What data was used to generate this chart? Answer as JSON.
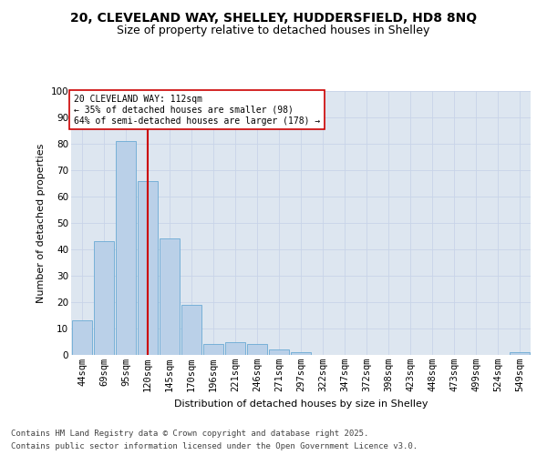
{
  "title1": "20, CLEVELAND WAY, SHELLEY, HUDDERSFIELD, HD8 8NQ",
  "title2": "Size of property relative to detached houses in Shelley",
  "xlabel": "Distribution of detached houses by size in Shelley",
  "ylabel": "Number of detached properties",
  "categories": [
    "44sqm",
    "69sqm",
    "95sqm",
    "120sqm",
    "145sqm",
    "170sqm",
    "196sqm",
    "221sqm",
    "246sqm",
    "271sqm",
    "297sqm",
    "322sqm",
    "347sqm",
    "372sqm",
    "398sqm",
    "423sqm",
    "448sqm",
    "473sqm",
    "499sqm",
    "524sqm",
    "549sqm"
  ],
  "values": [
    13,
    43,
    81,
    66,
    44,
    19,
    4,
    5,
    4,
    2,
    1,
    0,
    0,
    0,
    0,
    0,
    0,
    0,
    0,
    0,
    1
  ],
  "bar_color": "#bad0e8",
  "bar_edge_color": "#6aaad4",
  "red_line_x": 3.5,
  "annotation_text": "20 CLEVELAND WAY: 112sqm\n← 35% of detached houses are smaller (98)\n64% of semi-detached houses are larger (178) →",
  "annotation_box_color": "#ffffff",
  "annotation_box_edge": "#cc0000",
  "red_line_color": "#cc0000",
  "ylim": [
    0,
    100
  ],
  "yticks": [
    0,
    10,
    20,
    30,
    40,
    50,
    60,
    70,
    80,
    90,
    100
  ],
  "grid_color": "#c8d4e8",
  "bg_color": "#dde6f0",
  "footer1": "Contains HM Land Registry data © Crown copyright and database right 2025.",
  "footer2": "Contains public sector information licensed under the Open Government Licence v3.0.",
  "title_fontsize": 10,
  "subtitle_fontsize": 9,
  "axis_label_fontsize": 8,
  "tick_fontsize": 7.5,
  "annotation_fontsize": 7,
  "footer_fontsize": 6.5
}
